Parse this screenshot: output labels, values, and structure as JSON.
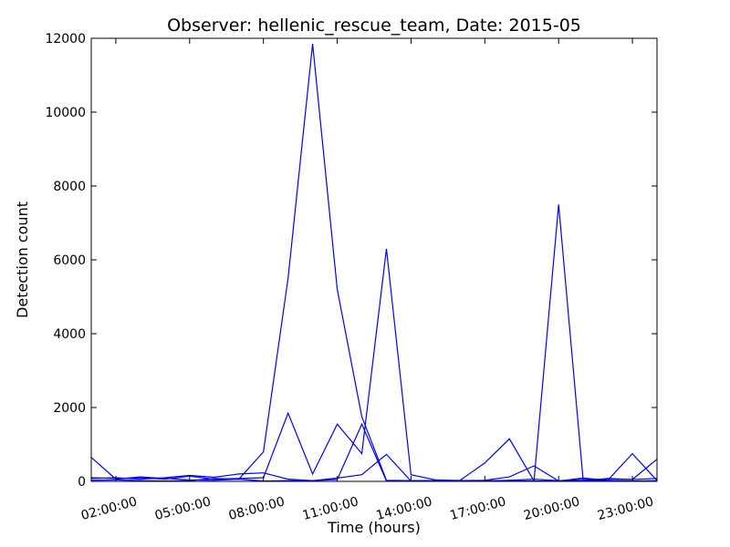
{
  "chart_data": {
    "type": "line",
    "title": "Observer: hellenic_rescue_team, Date: 2015-05",
    "xlabel": "Time (hours)",
    "ylabel": "Detection count",
    "xlim": [
      "01:00:00",
      "24:00:00"
    ],
    "ylim": [
      0,
      12000
    ],
    "yticks": [
      0,
      2000,
      4000,
      6000,
      8000,
      10000,
      12000
    ],
    "xticks": [
      "02:00:00",
      "05:00:00",
      "08:00:00",
      "11:00:00",
      "14:00:00",
      "17:00:00",
      "20:00:00",
      "23:00:00"
    ],
    "grid": false,
    "line_color": "#0000ff",
    "x": [
      "01:00:00",
      "02:00:00",
      "03:00:00",
      "04:00:00",
      "05:00:00",
      "06:00:00",
      "07:00:00",
      "08:00:00",
      "09:00:00",
      "10:00:00",
      "11:00:00",
      "12:00:00",
      "13:00:00",
      "14:00:00",
      "15:00:00",
      "16:00:00",
      "17:00:00",
      "18:00:00",
      "19:00:00",
      "20:00:00",
      "21:00:00",
      "22:00:00",
      "23:00:00",
      "24:00:00"
    ],
    "series": [
      {
        "values": [
          650,
          60,
          120,
          80,
          40,
          30,
          60,
          800,
          5500,
          11850,
          5200,
          1750,
          30,
          20,
          10,
          10,
          10,
          30,
          60,
          20,
          50,
          60,
          50,
          80
        ]
      },
      {
        "values": [
          100,
          80,
          100,
          60,
          140,
          60,
          80,
          100,
          1850,
          200,
          1550,
          750,
          6300,
          180,
          40,
          20,
          20,
          20,
          10,
          7500,
          30,
          20,
          10,
          20
        ]
      },
      {
        "values": [
          80,
          100,
          60,
          100,
          160,
          110,
          200,
          230,
          60,
          20,
          50,
          1550,
          10,
          20,
          20,
          30,
          500,
          1150,
          10,
          10,
          90,
          30,
          750,
          20
        ]
      },
      {
        "values": [
          30,
          40,
          20,
          10,
          20,
          80,
          60,
          10,
          20,
          20,
          90,
          180,
          730,
          10,
          20,
          20,
          30,
          120,
          420,
          10,
          10,
          80,
          50,
          600
        ]
      }
    ]
  }
}
